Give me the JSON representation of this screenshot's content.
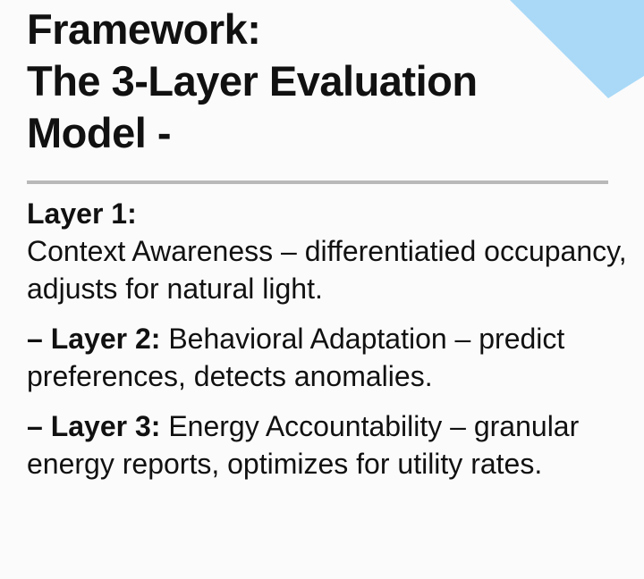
{
  "title": [
    "Framework:",
    "The 3-Layer Evaluation",
    "Model -"
  ],
  "accent_color": "#a9d9f7",
  "layers": [
    {
      "label": "Layer 1:",
      "text": "Context Awareness – differentiatied occupancy, adjusts for natural light."
    },
    {
      "label": "– Layer 2:",
      "text": "Behavioral Adaptation – predict preferences, detects anomalies."
    },
    {
      "label": "– Layer 3:",
      "text": "Energy Accountability – granular energy reports, optimizes for utility rates."
    }
  ]
}
